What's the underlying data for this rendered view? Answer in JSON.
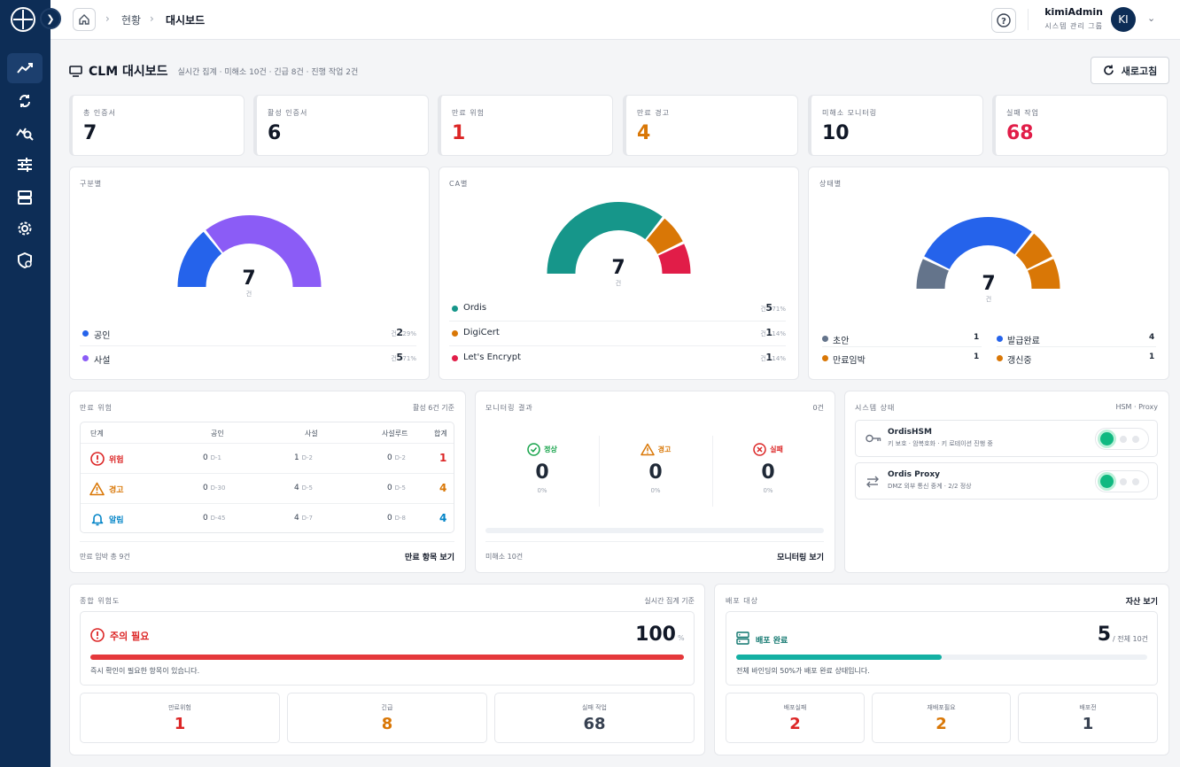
{
  "breadcrumb": {
    "items": [
      "현황",
      "대시보드"
    ]
  },
  "user": {
    "name": "kimiAdmin",
    "role": "시스템 관리 그룹",
    "initials": "KI"
  },
  "header": {
    "title": "CLM 대시보드",
    "subtitle": "실시간 집계 · 미해소 10건 · 긴급 8건 · 진행 작업 2건",
    "refresh": "새로고침"
  },
  "stats": [
    {
      "label": "총 인증서",
      "value": "7",
      "color": "#0ea5e9"
    },
    {
      "label": "활성 인증서",
      "value": "6",
      "color": "#10b981"
    },
    {
      "label": "만료 위험",
      "value": "1",
      "color": "#dc2626"
    },
    {
      "label": "만료 경고",
      "value": "4",
      "color": "#d97706"
    },
    {
      "label": "미해소 모니터링",
      "value": "10",
      "color": "#8b5cf6"
    },
    {
      "label": "실패 작업",
      "value": "68",
      "color": "#e11d48"
    }
  ],
  "by_type": {
    "title": "구분별",
    "total": "7",
    "unit": "건",
    "items": [
      {
        "name": "공인",
        "count": "2",
        "pct": "건 · 29%",
        "color": "#2563eb"
      },
      {
        "name": "사설",
        "count": "5",
        "pct": "건 · 71%",
        "color": "#8b5cf6"
      }
    ]
  },
  "by_ca": {
    "title": "CA별",
    "total": "7",
    "unit": "건",
    "items": [
      {
        "name": "Ordis",
        "count": "5",
        "pct": "건 · 71%",
        "color": "#16968a"
      },
      {
        "name": "DigiCert",
        "count": "1",
        "pct": "건 · 14%",
        "color": "#d97706"
      },
      {
        "name": "Let's Encrypt",
        "count": "1",
        "pct": "건 · 14%",
        "color": "#e11d48"
      }
    ]
  },
  "by_status": {
    "title": "상태별",
    "total": "7",
    "unit": "건",
    "items": [
      {
        "name": "초안",
        "count": "1",
        "color": "#64748b"
      },
      {
        "name": "발급완료",
        "count": "4",
        "color": "#2563eb"
      },
      {
        "name": "만료임박",
        "count": "1",
        "color": "#d97706"
      },
      {
        "name": "갱신중",
        "count": "1",
        "color": "#d97706"
      }
    ]
  },
  "expiry": {
    "title": "만료 위험",
    "basis": "활성 6건 기준",
    "columns": [
      "단계",
      "공인",
      "사설",
      "사설루트",
      "합계"
    ],
    "rows": [
      {
        "stage": "위험",
        "public": "0",
        "public_d": "D-1",
        "private": "1",
        "private_d": "D-2",
        "root": "0",
        "root_d": "D-2",
        "total": "1",
        "color": "#dc2626"
      },
      {
        "stage": "경고",
        "public": "0",
        "public_d": "D-30",
        "private": "4",
        "private_d": "D-5",
        "root": "0",
        "root_d": "D-5",
        "total": "4",
        "color": "#d97706"
      },
      {
        "stage": "알림",
        "public": "0",
        "public_d": "D-45",
        "private": "4",
        "private_d": "D-7",
        "root": "0",
        "root_d": "D-8",
        "total": "4",
        "color": "#0284c7"
      }
    ],
    "footer": "만료 임박 총 9건",
    "link": "만료 항목 보기"
  },
  "monitoring": {
    "title": "모니터링 결과",
    "count": "0건",
    "items": [
      {
        "label": "정상",
        "value": "0",
        "pct": "0%",
        "color": "#16a34a"
      },
      {
        "label": "경고",
        "value": "0",
        "pct": "0%",
        "color": "#d97706"
      },
      {
        "label": "실패",
        "value": "0",
        "pct": "0%",
        "color": "#dc2626"
      }
    ],
    "footer": "미해소 10건",
    "link": "모니터링 보기"
  },
  "system": {
    "title": "시스템 상태",
    "subtitle": "HSM · Proxy",
    "items": [
      {
        "name": "OrdisHSM",
        "desc": "키 보호 · 암복호화 · 키 로테이션 진행 중",
        "icon": "key-icon"
      },
      {
        "name": "Ordis Proxy",
        "desc": "DMZ 외부 통신 중계 · 2/2 정상",
        "icon": "arrows-icon"
      }
    ]
  },
  "risk": {
    "title": "종합 위험도",
    "basis": "실시간 집계 기준",
    "label": "주의 필요",
    "score": "100",
    "unit": "%",
    "progress": 1.0,
    "desc": "즉시 확인이 필요한 항목이 있습니다.",
    "minis": [
      {
        "label": "만료위험",
        "value": "1",
        "color": "#dc2626"
      },
      {
        "label": "긴급",
        "value": "8",
        "color": "#d97706"
      },
      {
        "label": "실패 작업",
        "value": "68",
        "color": "#374151"
      }
    ]
  },
  "deploy": {
    "title": "배포 대상",
    "link": "자산 보기",
    "label": "배포 완료",
    "value": "5",
    "total": "/ 전체 10건",
    "progress": 0.5,
    "desc": "전체 바인딩의 50%가 배포 완료 상태입니다.",
    "minis": [
      {
        "label": "배포실패",
        "value": "2",
        "color": "#dc2626"
      },
      {
        "label": "재배포필요",
        "value": "2",
        "color": "#d97706"
      },
      {
        "label": "배포전",
        "value": "1",
        "color": "#374151"
      }
    ]
  }
}
